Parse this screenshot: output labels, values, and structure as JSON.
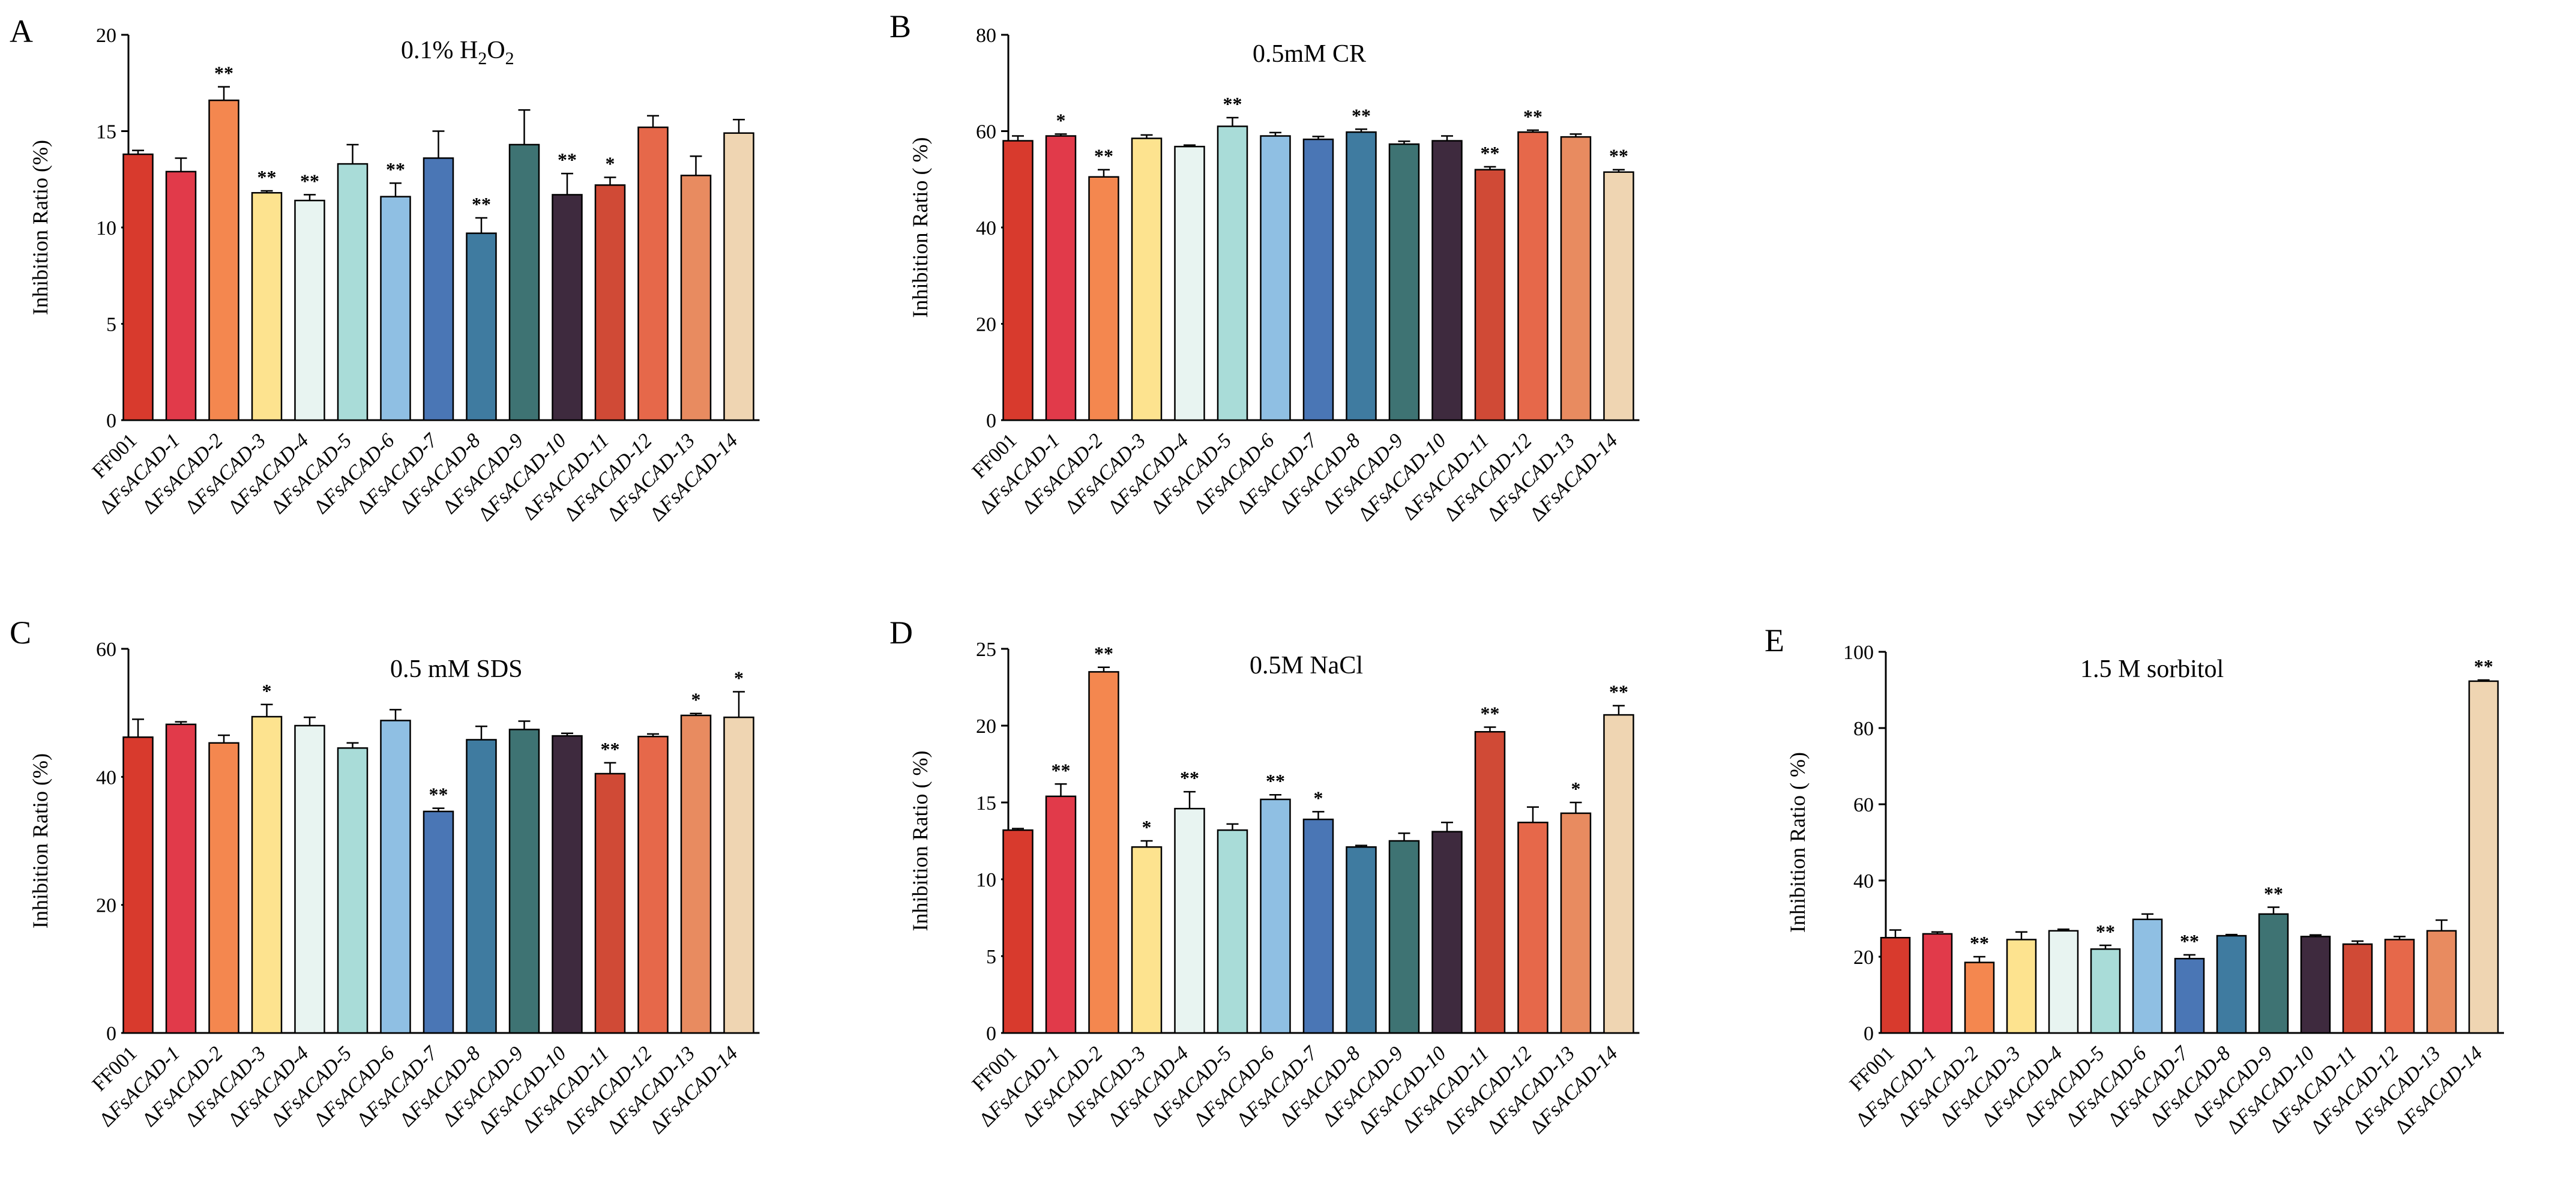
{
  "categories": [
    "FF001",
    "ΔFsACAD-1",
    "ΔFsACAD-2",
    "ΔFsACAD-3",
    "ΔFsACAD-4",
    "ΔFsACAD-5",
    "ΔFsACAD-6",
    "ΔFsACAD-7",
    "ΔFsACAD-8",
    "ΔFsACAD-9",
    "ΔFsACAD-10",
    "ΔFsACAD-11",
    "ΔFsACAD-12",
    "ΔFsACAD-13",
    "ΔFsACAD-14"
  ],
  "colors": [
    "#d83a2d",
    "#e13a4a",
    "#f4874f",
    "#fde38f",
    "#e8f4f1",
    "#a9dcd8",
    "#8fbfe3",
    "#4a76b5",
    "#3f7ba0",
    "#3e7373",
    "#3e2a3e",
    "#d04a36",
    "#e6684a",
    "#e88b60",
    "#efd5b2"
  ],
  "chart_data": [
    {
      "panel": "A",
      "type": "bar",
      "title_main": "0.1% H",
      "title_sub1": "2",
      "title_mid": "O",
      "title_sub2": "2",
      "ylabel": "Inhibition Ratio (%)",
      "ylim": [
        0,
        20
      ],
      "yticks": [
        0,
        5,
        10,
        15,
        20
      ],
      "values": [
        13.8,
        12.9,
        16.6,
        11.8,
        11.4,
        13.3,
        11.6,
        13.6,
        9.7,
        14.3,
        11.7,
        12.2,
        15.2,
        12.7,
        14.9
      ],
      "errors": [
        0.2,
        0.7,
        0.7,
        0.1,
        0.3,
        1.0,
        0.7,
        1.4,
        0.8,
        1.8,
        1.1,
        0.4,
        0.6,
        1.0,
        0.7
      ],
      "significance": [
        "",
        "",
        "**",
        "**",
        "**",
        "",
        "**",
        "",
        "**",
        "",
        "**",
        "*",
        "",
        "",
        ""
      ]
    },
    {
      "panel": "B",
      "type": "bar",
      "title_main": "0.5mM CR",
      "ylabel": "Inhibition Ratio ( %)",
      "ylim": [
        0,
        80
      ],
      "yticks": [
        0,
        20,
        40,
        60,
        80
      ],
      "values": [
        58,
        59,
        50.5,
        58.5,
        56.8,
        61,
        59,
        58.3,
        59.8,
        57.3,
        58,
        52,
        59.8,
        58.8,
        51.5
      ],
      "errors": [
        1.0,
        0.4,
        1.5,
        0.7,
        0.3,
        1.8,
        0.7,
        0.6,
        0.6,
        0.6,
        1.0,
        0.6,
        0.4,
        0.6,
        0.5
      ],
      "significance": [
        "",
        "*",
        "**",
        "",
        "",
        "**",
        "",
        "",
        "**",
        "",
        "",
        "**",
        "**",
        "",
        "**"
      ]
    },
    {
      "panel": "C",
      "type": "bar",
      "title_main": "0.5 mM SDS",
      "ylabel": "Inhibition Ratio (%)",
      "ylim": [
        0,
        60
      ],
      "yticks": [
        0,
        20,
        40,
        60
      ],
      "values": [
        46.2,
        48.2,
        45.3,
        49.4,
        48.0,
        44.5,
        48.8,
        34.6,
        45.8,
        47.4,
        46.4,
        40.5,
        46.3,
        49.6,
        49.3
      ],
      "errors": [
        2.8,
        0.4,
        1.2,
        1.9,
        1.3,
        0.8,
        1.7,
        0.5,
        2.1,
        1.3,
        0.4,
        1.7,
        0.4,
        0.3,
        4.0
      ],
      "significance": [
        "",
        "",
        "",
        "*",
        "",
        "",
        "",
        "**",
        "",
        "",
        "",
        "**",
        "",
        "*",
        "*"
      ]
    },
    {
      "panel": "D",
      "type": "bar",
      "title_main": "0.5M NaCl",
      "ylabel": "Inhibition Ratio ( %)",
      "ylim": [
        0,
        25
      ],
      "yticks": [
        0,
        5,
        10,
        15,
        20,
        25
      ],
      "values": [
        13.2,
        15.4,
        23.5,
        12.1,
        14.6,
        13.2,
        15.2,
        13.9,
        12.1,
        12.5,
        13.1,
        19.6,
        13.7,
        14.3,
        20.7
      ],
      "errors": [
        0.1,
        0.8,
        0.3,
        0.4,
        1.1,
        0.4,
        0.3,
        0.5,
        0.1,
        0.5,
        0.6,
        0.3,
        1.0,
        0.7,
        0.6
      ],
      "significance": [
        "",
        "**",
        "**",
        "*",
        "**",
        "",
        "**",
        "*",
        "",
        "",
        "",
        "**",
        "",
        "*",
        "**"
      ]
    },
    {
      "panel": "E",
      "type": "bar",
      "title_main": "1.5 M sorbitol",
      "ylabel": "Inhibition Ratio ( %)",
      "ylim": [
        0,
        100
      ],
      "yticks": [
        0,
        20,
        40,
        60,
        80,
        100
      ],
      "values": [
        25,
        26,
        18.5,
        24.5,
        26.8,
        22,
        29.8,
        19.5,
        25.5,
        31.2,
        25.3,
        23.3,
        24.5,
        26.8,
        92.3
      ],
      "errors": [
        2.0,
        0.5,
        1.5,
        2.0,
        0.4,
        1.0,
        1.4,
        1.0,
        0.3,
        1.8,
        0.4,
        0.8,
        0.8,
        2.8,
        0.3
      ],
      "significance": [
        "",
        "",
        "**",
        "",
        "",
        "**",
        "",
        "**",
        "",
        "**",
        "",
        "",
        "",
        "",
        "**"
      ]
    }
  ]
}
